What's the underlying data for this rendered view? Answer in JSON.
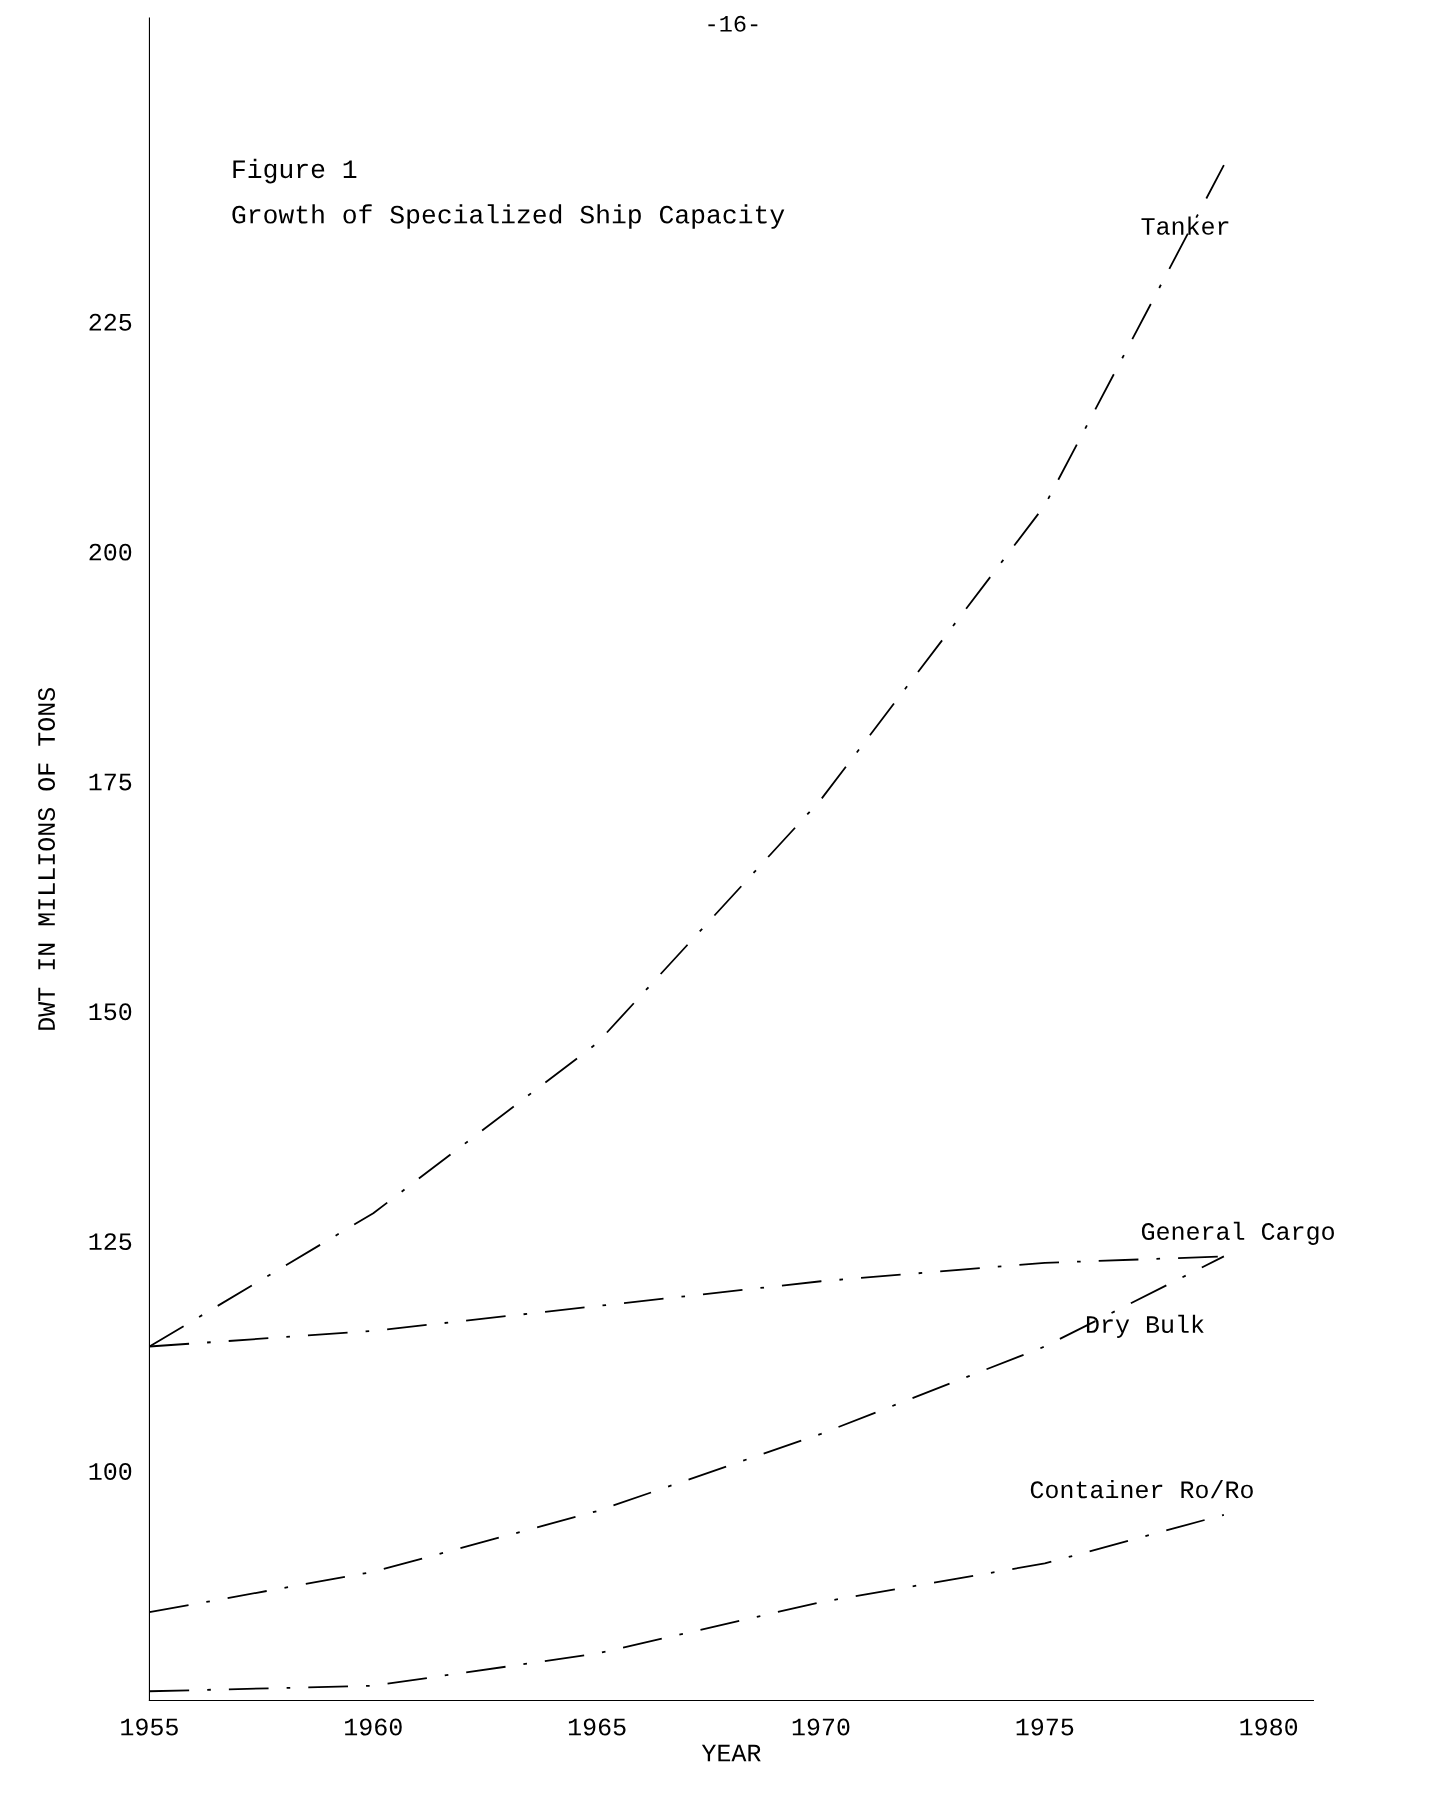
{
  "chart_data": {
    "type": "line",
    "title": "Figure 1",
    "subtitle": "Growth of Specialized Ship Capacity",
    "xlabel": "YEAR",
    "ylabel": "DWT IN MILLIONS OF TONS",
    "annotations": [
      "-16-"
    ],
    "x": [
      1955,
      1960,
      1965,
      1970,
      1975,
      1979
    ],
    "series": [
      {
        "name": "Tanker",
        "color": "#000000",
        "values": [
          113.5,
          128,
          146.5,
          173,
          205,
          242
        ]
      },
      {
        "name": "General Cargo",
        "color": "#000000",
        "values": [
          113.5,
          115.2,
          117.9,
          120.6,
          122.6,
          123.3
        ]
      },
      {
        "name": "Dry Bulk",
        "color": "#000000",
        "values": [
          84.6,
          89,
          95.6,
          104,
          113.5,
          123.3
        ]
      },
      {
        "name": "Container Ro/Ro",
        "color": "#000000",
        "values": [
          76,
          76.6,
          80.1,
          85.7,
          89.9,
          95.2
        ]
      }
    ],
    "xlim": [
      1955,
      1981
    ],
    "ylim": [
      75,
      258
    ],
    "xticks": [
      1955,
      1960,
      1965,
      1970,
      1975,
      1980
    ],
    "yticks": [
      100,
      125,
      150,
      175,
      200,
      225
    ],
    "grid": false,
    "legend": false,
    "marker": "none",
    "line_style": "dashdot"
  }
}
